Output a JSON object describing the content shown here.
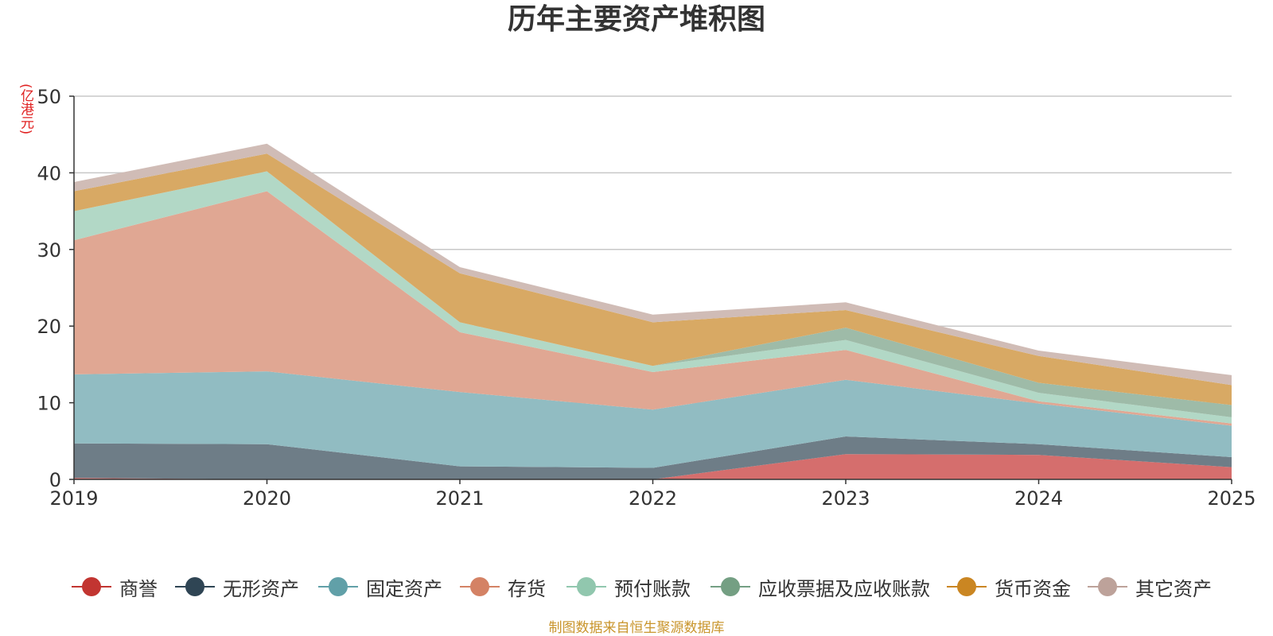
{
  "chart_data": {
    "type": "area",
    "stacked": true,
    "title": "历年主要资产堆积图",
    "ylabel": "(亿港元)",
    "xlabel": "",
    "categories": [
      "2019",
      "2020",
      "2021",
      "2022",
      "2023",
      "2024",
      "2025"
    ],
    "ylim": [
      0,
      50
    ],
    "yticks": [
      0,
      10,
      20,
      30,
      40,
      50
    ],
    "grid": true,
    "legend_position": "bottom",
    "series": [
      {
        "name": "商誉",
        "color": "#c23531",
        "fill": "#d56e6d",
        "values": [
          0.2,
          0,
          0,
          0,
          3.3,
          3.2,
          1.6
        ]
      },
      {
        "name": "无形资产",
        "color": "#2f4554",
        "fill": "#6e7d87",
        "values": [
          4.5,
          4.6,
          1.7,
          1.5,
          2.3,
          1.4,
          1.3
        ]
      },
      {
        "name": "固定资产",
        "color": "#61a0a8",
        "fill": "#91bcc2",
        "values": [
          9.0,
          9.5,
          9.7,
          7.6,
          7.4,
          5.3,
          4.1
        ]
      },
      {
        "name": "存货",
        "color": "#d48265",
        "fill": "#e0a793",
        "values": [
          17.5,
          23.5,
          7.8,
          4.9,
          3.9,
          0.3,
          0.3
        ]
      },
      {
        "name": "预付账款",
        "color": "#91c7ae",
        "fill": "#b2d8c6",
        "values": [
          3.8,
          2.6,
          1.3,
          0.8,
          1.3,
          1.1,
          0.8
        ]
      },
      {
        "name": "应收票据及应收账款",
        "color": "#749f83",
        "fill": "#9ebba8",
        "values": [
          0,
          0,
          0,
          0,
          1.6,
          1.3,
          1.6
        ]
      },
      {
        "name": "货币资金",
        "color": "#ca8622",
        "fill": "#d8a964",
        "values": [
          2.6,
          2.3,
          6.4,
          5.7,
          2.3,
          3.5,
          2.6
        ]
      },
      {
        "name": "其它资产",
        "color": "#bda29a",
        "fill": "#d0bcb6",
        "values": [
          1.2,
          1.3,
          0.8,
          1.0,
          1.0,
          0.7,
          1.3
        ]
      }
    ]
  },
  "source_note": "制图数据来自恒生聚源数据库"
}
